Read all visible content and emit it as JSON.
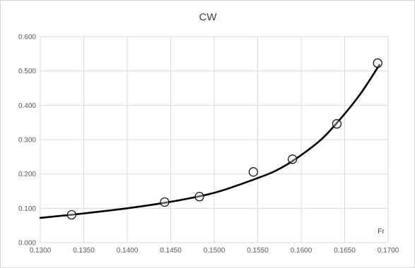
{
  "chart_data": {
    "type": "scatter",
    "title": "CW",
    "xlabel": "Fr",
    "ylabel": "",
    "xlim": [
      0.13,
      0.17
    ],
    "ylim": [
      0.0,
      0.6
    ],
    "x_ticks": [
      "0.1300",
      "0.1350",
      "0.1400",
      "0.1450",
      "0.1500",
      "0.1550",
      "0.1600",
      "0.1650",
      "0.1700"
    ],
    "y_ticks": [
      "0.000",
      "0.100",
      "0.200",
      "0.300",
      "0.400",
      "0.500",
      "0.600"
    ],
    "grid": true,
    "series": [
      {
        "marker": "open-circle",
        "x": [
          0.1336,
          0.1443,
          0.1483,
          0.1545,
          0.159,
          0.1641,
          0.1688
        ],
        "y": [
          0.081,
          0.118,
          0.134,
          0.206,
          0.243,
          0.346,
          0.523
        ]
      }
    ],
    "trendline": {
      "x": [
        0.13,
        0.135,
        0.14,
        0.145,
        0.15,
        0.155,
        0.1575,
        0.16,
        0.1625,
        0.165,
        0.167,
        0.169
      ],
      "y": [
        0.072,
        0.085,
        0.1,
        0.119,
        0.145,
        0.188,
        0.215,
        0.255,
        0.305,
        0.375,
        0.44,
        0.518
      ]
    },
    "colors": {
      "line": "#000000",
      "marker": "#000000",
      "grid": "#d9d9d9",
      "tick_text": "#595959"
    }
  }
}
